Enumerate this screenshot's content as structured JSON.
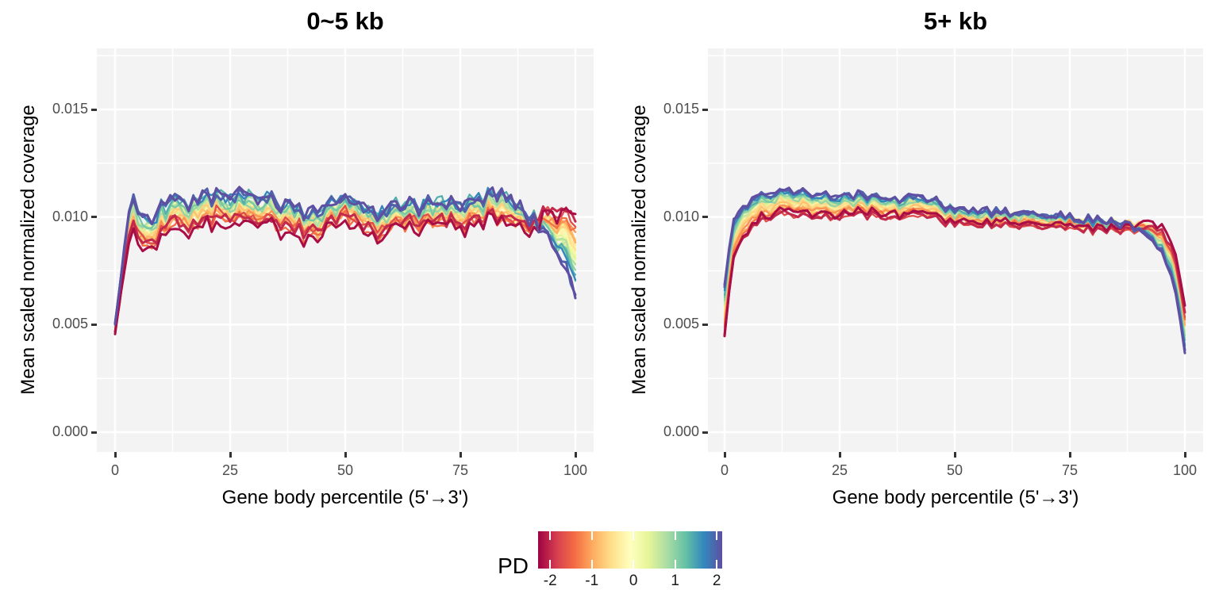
{
  "figure": {
    "background": "#FFFFFF",
    "panel_background": "#F3F3F3",
    "gridline_color": "#FFFFFF",
    "tick_color": "#333333",
    "tick_label_color": "#4D4D4D"
  },
  "chart_data": {
    "type": "line",
    "description": "Gene body coverage curves; many samples colored by PD on a Spectral colormap, faceted by gene length.",
    "panels": [
      {
        "title": "0~5 kb",
        "xlabel": "Gene body percentile (5'→3')",
        "ylabel": "Mean scaled normalized coverage",
        "x_ticks": [
          0,
          25,
          50,
          75,
          100
        ],
        "y_ticks": [
          "0.000",
          "0.005",
          "0.010",
          "0.015"
        ],
        "y_tick_values": [
          0,
          0.005,
          0.01,
          0.015
        ],
        "xlim": [
          -4,
          104
        ],
        "ylim": [
          -0.0009,
          0.0178
        ],
        "grid": true,
        "base_profile": [
          [
            0,
            0.005
          ],
          [
            1,
            0.0063
          ],
          [
            2,
            0.0081
          ],
          [
            3,
            0.0094
          ],
          [
            4,
            0.0101
          ],
          [
            5,
            0.0098
          ],
          [
            6,
            0.0096
          ],
          [
            8,
            0.0093
          ],
          [
            10,
            0.0099
          ],
          [
            13,
            0.0102
          ],
          [
            16,
            0.01
          ],
          [
            19,
            0.0104
          ],
          [
            22,
            0.0105
          ],
          [
            24,
            0.0101
          ],
          [
            27,
            0.0104
          ],
          [
            30,
            0.0102
          ],
          [
            33,
            0.0105
          ],
          [
            36,
            0.0101
          ],
          [
            39,
            0.0098
          ],
          [
            42,
            0.0097
          ],
          [
            44,
            0.0095
          ],
          [
            47,
            0.0103
          ],
          [
            50,
            0.0104
          ],
          [
            53,
            0.0102
          ],
          [
            55,
            0.0099
          ],
          [
            57,
            0.0097
          ],
          [
            60,
            0.01
          ],
          [
            63,
            0.0102
          ],
          [
            66,
            0.01
          ],
          [
            69,
            0.0101
          ],
          [
            72,
            0.0103
          ],
          [
            75,
            0.0102
          ],
          [
            78,
            0.0101
          ],
          [
            81,
            0.0105
          ],
          [
            83,
            0.0106
          ],
          [
            85,
            0.0103
          ],
          [
            87,
            0.01
          ],
          [
            89,
            0.0099
          ],
          [
            91,
            0.0097
          ],
          [
            93,
            0.0096
          ],
          [
            95,
            0.0094
          ],
          [
            97,
            0.0091
          ],
          [
            99,
            0.0087
          ],
          [
            100,
            0.0084
          ]
        ],
        "pd_spread": [
          [
            0,
            0.0002
          ],
          [
            3,
            0.0007
          ],
          [
            10,
            0.0006
          ],
          [
            25,
            0.0006
          ],
          [
            50,
            0.0005
          ],
          [
            75,
            0.0005
          ],
          [
            85,
            0.0006
          ],
          [
            90,
            0.0002
          ],
          [
            94,
            -0.0006
          ],
          [
            97,
            -0.0012
          ],
          [
            100,
            -0.0018
          ]
        ],
        "common_noise_amp": 0.00028,
        "series_noise_amp": 0.00026
      },
      {
        "title": "5+ kb",
        "xlabel": "Gene body percentile (5'→3')",
        "ylabel": "Mean scaled normalized coverage",
        "x_ticks": [
          0,
          25,
          50,
          75,
          100
        ],
        "y_ticks": [
          "0.000",
          "0.005",
          "0.010",
          "0.015"
        ],
        "y_tick_values": [
          0,
          0.005,
          0.01,
          0.015
        ],
        "xlim": [
          -4,
          104
        ],
        "ylim": [
          -0.0009,
          0.0178
        ],
        "grid": true,
        "base_profile": [
          [
            0,
            0.0055
          ],
          [
            1,
            0.0076
          ],
          [
            2,
            0.0089
          ],
          [
            3,
            0.0095
          ],
          [
            5,
            0.0101
          ],
          [
            8,
            0.0105
          ],
          [
            12,
            0.0107
          ],
          [
            16,
            0.0106
          ],
          [
            20,
            0.0107
          ],
          [
            25,
            0.0106
          ],
          [
            30,
            0.0106
          ],
          [
            35,
            0.0105
          ],
          [
            40,
            0.0105
          ],
          [
            45,
            0.0105
          ],
          [
            48,
            0.0102
          ],
          [
            52,
            0.0101
          ],
          [
            56,
            0.01
          ],
          [
            60,
            0.01
          ],
          [
            65,
            0.0099
          ],
          [
            70,
            0.0099
          ],
          [
            75,
            0.0098
          ],
          [
            80,
            0.0097
          ],
          [
            85,
            0.0096
          ],
          [
            88,
            0.0096
          ],
          [
            91,
            0.0095
          ],
          [
            93,
            0.0093
          ],
          [
            95,
            0.0089
          ],
          [
            97,
            0.0081
          ],
          [
            98,
            0.0073
          ],
          [
            99,
            0.0062
          ],
          [
            100,
            0.0049
          ]
        ],
        "pd_spread": [
          [
            0,
            0.0012
          ],
          [
            3,
            0.0008
          ],
          [
            8,
            0.0006
          ],
          [
            15,
            0.0006
          ],
          [
            30,
            0.0005
          ],
          [
            50,
            0.0004
          ],
          [
            70,
            0.0003
          ],
          [
            85,
            0.0002
          ],
          [
            90,
            0.0
          ],
          [
            94,
            -0.0004
          ],
          [
            97,
            -0.0007
          ],
          [
            100,
            -0.0009
          ]
        ],
        "common_noise_amp": 0.00016,
        "series_noise_amp": 0.00012
      }
    ],
    "series_pd": [
      -2.2,
      -2.0,
      -1.7,
      -1.4,
      -1.15,
      -0.95,
      -0.8,
      -0.7,
      -0.6,
      -0.5,
      -0.42,
      -0.35,
      -0.28,
      -0.22,
      -0.16,
      -0.1,
      -0.05,
      0,
      0.05,
      0.1,
      0.16,
      0.22,
      0.3,
      0.38,
      0.48,
      0.6,
      0.75,
      0.95,
      1.15,
      1.4,
      1.7,
      2.0,
      2.2
    ],
    "colormap": {
      "name": "spectral",
      "value_range": [
        -2.29,
        2.13
      ],
      "colors": [
        "#9E0142",
        "#D53E4F",
        "#F46D43",
        "#FDAE61",
        "#FEE08B",
        "#FFFFBF",
        "#E6F598",
        "#ABDDA4",
        "#66C2A5",
        "#3288BD",
        "#5E4FA2"
      ]
    },
    "legend": {
      "title": "PD",
      "ticks": [
        -2,
        -1,
        0,
        1,
        2
      ],
      "tick_labels": [
        "-2",
        "-1",
        "0",
        "1",
        "2"
      ],
      "position": "bottom"
    }
  }
}
